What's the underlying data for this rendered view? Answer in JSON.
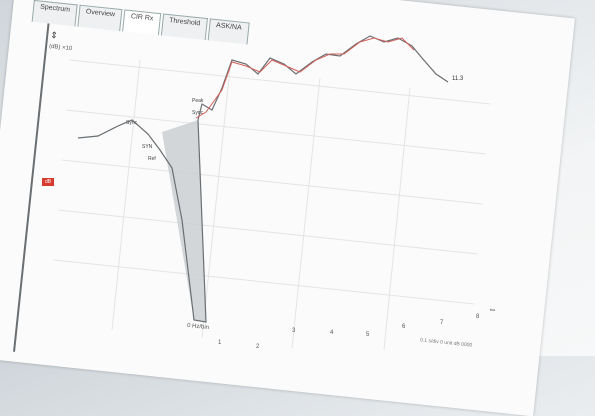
{
  "tabs": [
    {
      "label": "Spectrum"
    },
    {
      "label": "Overview"
    },
    {
      "label": "CIR Rx"
    },
    {
      "label": "Threshold"
    },
    {
      "label": "ASK/NA"
    }
  ],
  "y_axis_label": "(dB) ×10",
  "marker_label": "dB",
  "value_readout": "11.3",
  "bottom_label": "0 Hz/bin",
  "status_text": "0.1 s/div  0 unit  dB 0000",
  "annotations": [
    "Sync",
    "SYN",
    "Ref",
    "Peak",
    "Sync"
  ],
  "tick_labels": [
    "1",
    "2",
    "3",
    "4",
    "5",
    "6",
    "7",
    "8"
  ],
  "colors": {
    "trace_dark": "#6a6f73",
    "trace_red": "#d5605a",
    "fill": "#c9cdd1",
    "marker": "#d63b2f"
  }
}
